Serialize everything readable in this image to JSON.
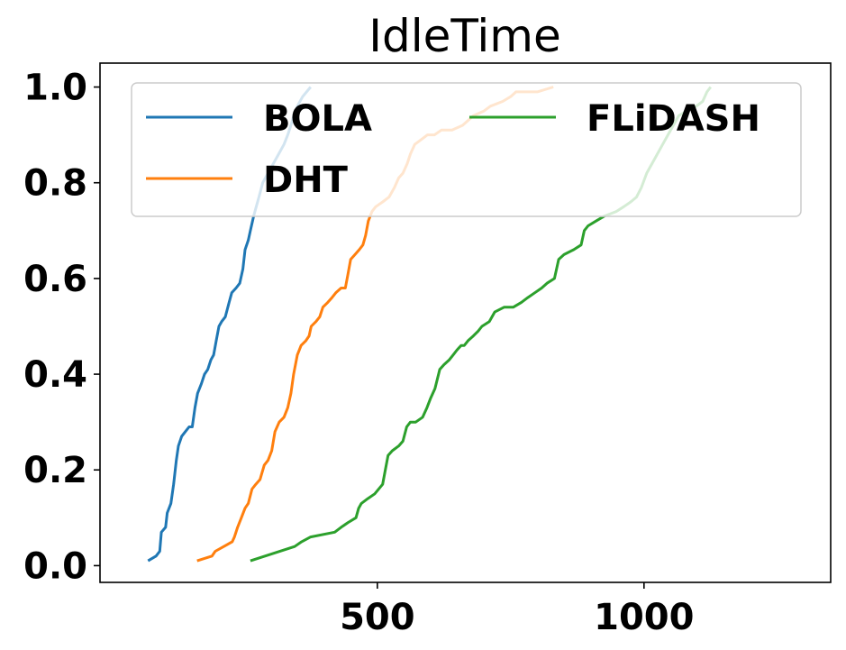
{
  "chart_data": {
    "type": "line",
    "title": "IdleTime",
    "xlabel": "",
    "ylabel": "",
    "xlim": [
      -20,
      1350
    ],
    "ylim": [
      -0.035,
      1.05
    ],
    "xticks": [
      500,
      1000
    ],
    "xtick_labels": [
      "500",
      "1000"
    ],
    "yticks": [
      0.0,
      0.2,
      0.4,
      0.6,
      0.8,
      1.0
    ],
    "ytick_labels": [
      "0.0",
      "0.2",
      "0.4",
      "0.6",
      "0.8",
      "1.0"
    ],
    "grid": false,
    "legend": {
      "placement": "top",
      "columns": 2
    },
    "series": [
      {
        "name": "BOLA",
        "color": "#1f77b4",
        "points": [
          [
            70,
            0.01
          ],
          [
            85,
            0.02
          ],
          [
            92,
            0.03
          ],
          [
            95,
            0.07
          ],
          [
            103,
            0.08
          ],
          [
            106,
            0.11
          ],
          [
            113,
            0.13
          ],
          [
            118,
            0.17
          ],
          [
            123,
            0.22
          ],
          [
            127,
            0.25
          ],
          [
            133,
            0.27
          ],
          [
            140,
            0.28
          ],
          [
            147,
            0.29
          ],
          [
            153,
            0.29
          ],
          [
            158,
            0.33
          ],
          [
            163,
            0.36
          ],
          [
            170,
            0.38
          ],
          [
            176,
            0.4
          ],
          [
            182,
            0.41
          ],
          [
            188,
            0.43
          ],
          [
            193,
            0.44
          ],
          [
            198,
            0.47
          ],
          [
            203,
            0.5
          ],
          [
            208,
            0.51
          ],
          [
            215,
            0.52
          ],
          [
            222,
            0.55
          ],
          [
            227,
            0.57
          ],
          [
            235,
            0.58
          ],
          [
            242,
            0.59
          ],
          [
            248,
            0.62
          ],
          [
            252,
            0.66
          ],
          [
            258,
            0.68
          ],
          [
            262,
            0.7
          ],
          [
            268,
            0.73
          ],
          [
            273,
            0.75
          ],
          [
            278,
            0.77
          ],
          [
            285,
            0.8
          ],
          [
            295,
            0.82
          ],
          [
            305,
            0.84
          ],
          [
            315,
            0.86
          ],
          [
            325,
            0.88
          ],
          [
            332,
            0.9
          ],
          [
            338,
            0.92
          ],
          [
            343,
            0.94
          ],
          [
            350,
            0.96
          ],
          [
            360,
            0.98
          ],
          [
            375,
            1.0
          ]
        ]
      },
      {
        "name": "DHT",
        "color": "#ff7f0e",
        "points": [
          [
            162,
            0.01
          ],
          [
            190,
            0.02
          ],
          [
            196,
            0.03
          ],
          [
            228,
            0.05
          ],
          [
            232,
            0.06
          ],
          [
            238,
            0.08
          ],
          [
            245,
            0.1
          ],
          [
            252,
            0.12
          ],
          [
            258,
            0.13
          ],
          [
            265,
            0.16
          ],
          [
            272,
            0.17
          ],
          [
            280,
            0.18
          ],
          [
            288,
            0.21
          ],
          [
            295,
            0.22
          ],
          [
            302,
            0.24
          ],
          [
            308,
            0.28
          ],
          [
            316,
            0.3
          ],
          [
            325,
            0.31
          ],
          [
            332,
            0.33
          ],
          [
            338,
            0.36
          ],
          [
            343,
            0.4
          ],
          [
            350,
            0.44
          ],
          [
            357,
            0.46
          ],
          [
            366,
            0.47
          ],
          [
            372,
            0.48
          ],
          [
            376,
            0.5
          ],
          [
            385,
            0.51
          ],
          [
            392,
            0.52
          ],
          [
            398,
            0.54
          ],
          [
            407,
            0.55
          ],
          [
            415,
            0.56
          ],
          [
            422,
            0.57
          ],
          [
            432,
            0.58
          ],
          [
            440,
            0.58
          ],
          [
            445,
            0.61
          ],
          [
            450,
            0.64
          ],
          [
            458,
            0.65
          ],
          [
            466,
            0.66
          ],
          [
            473,
            0.67
          ],
          [
            478,
            0.69
          ],
          [
            483,
            0.72
          ],
          [
            490,
            0.74
          ],
          [
            497,
            0.75
          ],
          [
            510,
            0.76
          ],
          [
            522,
            0.77
          ],
          [
            532,
            0.79
          ],
          [
            540,
            0.81
          ],
          [
            548,
            0.82
          ],
          [
            556,
            0.84
          ],
          [
            562,
            0.86
          ],
          [
            570,
            0.88
          ],
          [
            582,
            0.89
          ],
          [
            594,
            0.9
          ],
          [
            607,
            0.9
          ],
          [
            620,
            0.91
          ],
          [
            640,
            0.91
          ],
          [
            660,
            0.92
          ],
          [
            680,
            0.94
          ],
          [
            700,
            0.95
          ],
          [
            712,
            0.96
          ],
          [
            735,
            0.97
          ],
          [
            750,
            0.98
          ],
          [
            760,
            0.99
          ],
          [
            800,
            0.99
          ],
          [
            830,
            1.0
          ]
        ]
      },
      {
        "name": "FLiDASH",
        "color": "#2ca02c",
        "points": [
          [
            262,
            0.01
          ],
          [
            345,
            0.04
          ],
          [
            358,
            0.05
          ],
          [
            375,
            0.06
          ],
          [
            420,
            0.07
          ],
          [
            432,
            0.08
          ],
          [
            445,
            0.09
          ],
          [
            460,
            0.1
          ],
          [
            465,
            0.12
          ],
          [
            470,
            0.13
          ],
          [
            482,
            0.14
          ],
          [
            495,
            0.15
          ],
          [
            510,
            0.17
          ],
          [
            515,
            0.2
          ],
          [
            520,
            0.23
          ],
          [
            528,
            0.24
          ],
          [
            540,
            0.25
          ],
          [
            548,
            0.26
          ],
          [
            555,
            0.29
          ],
          [
            562,
            0.3
          ],
          [
            572,
            0.3
          ],
          [
            585,
            0.31
          ],
          [
            593,
            0.33
          ],
          [
            600,
            0.35
          ],
          [
            608,
            0.37
          ],
          [
            617,
            0.41
          ],
          [
            625,
            0.42
          ],
          [
            635,
            0.43
          ],
          [
            642,
            0.44
          ],
          [
            649,
            0.45
          ],
          [
            657,
            0.46
          ],
          [
            663,
            0.46
          ],
          [
            670,
            0.47
          ],
          [
            680,
            0.48
          ],
          [
            689,
            0.49
          ],
          [
            696,
            0.5
          ],
          [
            710,
            0.51
          ],
          [
            720,
            0.53
          ],
          [
            738,
            0.54
          ],
          [
            755,
            0.54
          ],
          [
            770,
            0.55
          ],
          [
            782,
            0.56
          ],
          [
            795,
            0.57
          ],
          [
            808,
            0.58
          ],
          [
            818,
            0.59
          ],
          [
            832,
            0.6
          ],
          [
            840,
            0.64
          ],
          [
            850,
            0.65
          ],
          [
            868,
            0.66
          ],
          [
            882,
            0.67
          ],
          [
            888,
            0.7
          ],
          [
            895,
            0.71
          ],
          [
            910,
            0.72
          ],
          [
            925,
            0.73
          ],
          [
            948,
            0.74
          ],
          [
            962,
            0.75
          ],
          [
            975,
            0.76
          ],
          [
            986,
            0.77
          ],
          [
            995,
            0.79
          ],
          [
            1005,
            0.82
          ],
          [
            1015,
            0.84
          ],
          [
            1025,
            0.86
          ],
          [
            1035,
            0.88
          ],
          [
            1045,
            0.9
          ],
          [
            1055,
            0.92
          ],
          [
            1065,
            0.94
          ],
          [
            1080,
            0.95
          ],
          [
            1098,
            0.96
          ],
          [
            1110,
            0.97
          ],
          [
            1118,
            0.99
          ],
          [
            1125,
            1.0
          ]
        ]
      }
    ]
  }
}
